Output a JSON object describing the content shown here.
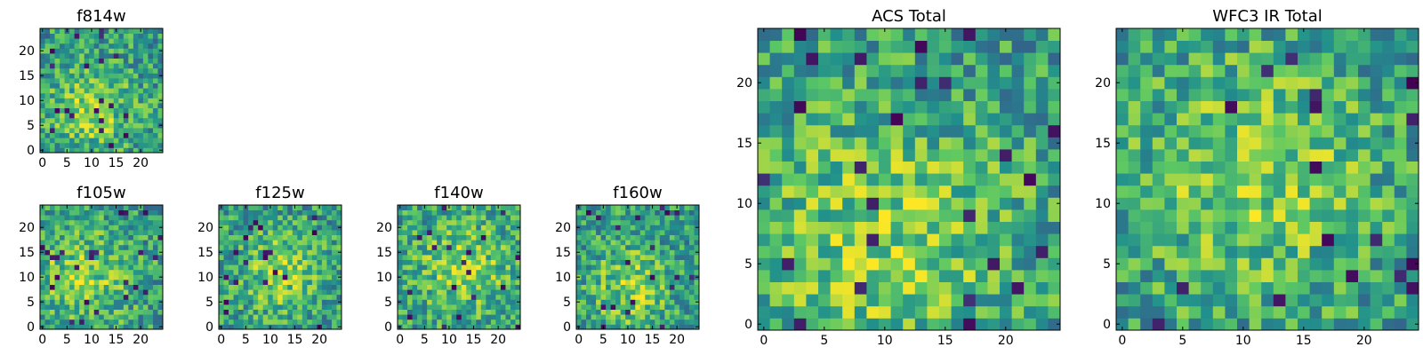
{
  "figure": {
    "colormap": [
      "#440154",
      "#3b528b",
      "#21908c",
      "#5dc863",
      "#fde725"
    ]
  },
  "chart_data": [
    {
      "type": "heatmap",
      "title": "f814w",
      "grid_size": 25,
      "xticks": [
        0,
        5,
        10,
        15,
        20
      ],
      "yticks": [
        0,
        5,
        10,
        15,
        20
      ],
      "xlim": [
        -0.5,
        24.5
      ],
      "ylim": [
        -0.5,
        24.5
      ],
      "z": "pixel noise image, 25x25 values, brighter toward center around (10, 8)"
    },
    {
      "type": "heatmap",
      "title": "f105w",
      "grid_size": 25,
      "xticks": [
        0,
        5,
        10,
        15,
        20
      ],
      "yticks": [
        0,
        5,
        10,
        15,
        20
      ],
      "xlim": [
        -0.5,
        24.5
      ],
      "ylim": [
        -0.5,
        24.5
      ],
      "z": "pixel noise image, 25x25 values, bright region center-left"
    },
    {
      "type": "heatmap",
      "title": "f125w",
      "grid_size": 25,
      "xticks": [
        0,
        5,
        10,
        15,
        20
      ],
      "yticks": [
        0,
        5,
        10,
        15,
        20
      ],
      "xlim": [
        -0.5,
        24.5
      ],
      "ylim": [
        -0.5,
        24.5
      ],
      "z": "pixel noise image, 25x25 values, bright region near center"
    },
    {
      "type": "heatmap",
      "title": "f140w",
      "grid_size": 25,
      "xticks": [
        0,
        5,
        10,
        15,
        20
      ],
      "yticks": [
        0,
        5,
        10,
        15,
        20
      ],
      "xlim": [
        -0.5,
        24.5
      ],
      "ylim": [
        -0.5,
        24.5
      ],
      "z": "pixel noise image, 25x25 values, bright region near center"
    },
    {
      "type": "heatmap",
      "title": "f160w",
      "grid_size": 25,
      "xticks": [
        0,
        5,
        10,
        15,
        20
      ],
      "yticks": [
        0,
        5,
        10,
        15,
        20
      ],
      "xlim": [
        -0.5,
        24.5
      ],
      "ylim": [
        -0.5,
        24.5
      ],
      "z": "pixel noise image, 25x25 values, mostly green/yellow"
    },
    {
      "type": "heatmap",
      "title": "ACS Total",
      "grid_size": 25,
      "xticks": [
        0,
        5,
        10,
        15,
        20
      ],
      "yticks": [
        0,
        5,
        10,
        15,
        20
      ],
      "xlim": [
        -0.5,
        24.5
      ],
      "ylim": [
        -0.5,
        24.5
      ],
      "z": "pixel noise image, 25x25 values, bright lower-center"
    },
    {
      "type": "heatmap",
      "title": "WFC3 IR Total",
      "grid_size": 25,
      "xticks": [
        0,
        5,
        10,
        15,
        20
      ],
      "yticks": [
        0,
        5,
        10,
        15,
        20
      ],
      "xlim": [
        -0.5,
        24.5
      ],
      "ylim": [
        -0.5,
        24.5
      ],
      "z": "pixel noise image, 25x25 values, bright blob around (11, 12)"
    }
  ]
}
